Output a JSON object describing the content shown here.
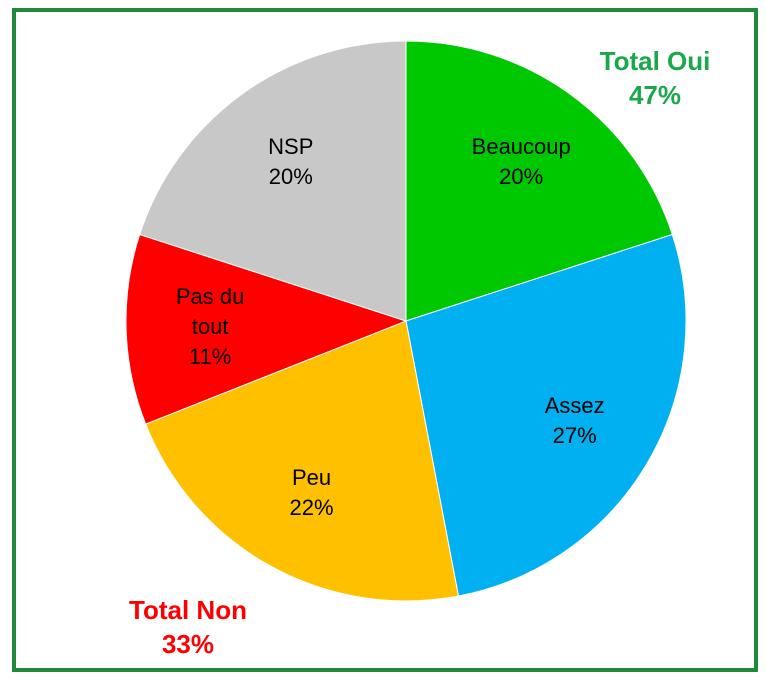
{
  "chart_data": {
    "type": "pie",
    "categories": [
      "Beaucoup",
      "Assez",
      "Peu",
      "Pas du tout",
      "NSP"
    ],
    "values": [
      20,
      27,
      22,
      11,
      20
    ],
    "value_labels": [
      "20%",
      "27%",
      "22%",
      "11%",
      "20%"
    ],
    "colors": [
      "#00c800",
      "#00b0f0",
      "#ffc000",
      "#ff0000",
      "#c8c8c8"
    ],
    "annotations": [
      {
        "text": "Total Oui",
        "value_label": "47%",
        "color": "#1aa84b",
        "corner": "top-right"
      },
      {
        "text": "Total Non",
        "value_label": "33%",
        "color": "#ff0000",
        "corner": "bottom-left"
      }
    ]
  }
}
